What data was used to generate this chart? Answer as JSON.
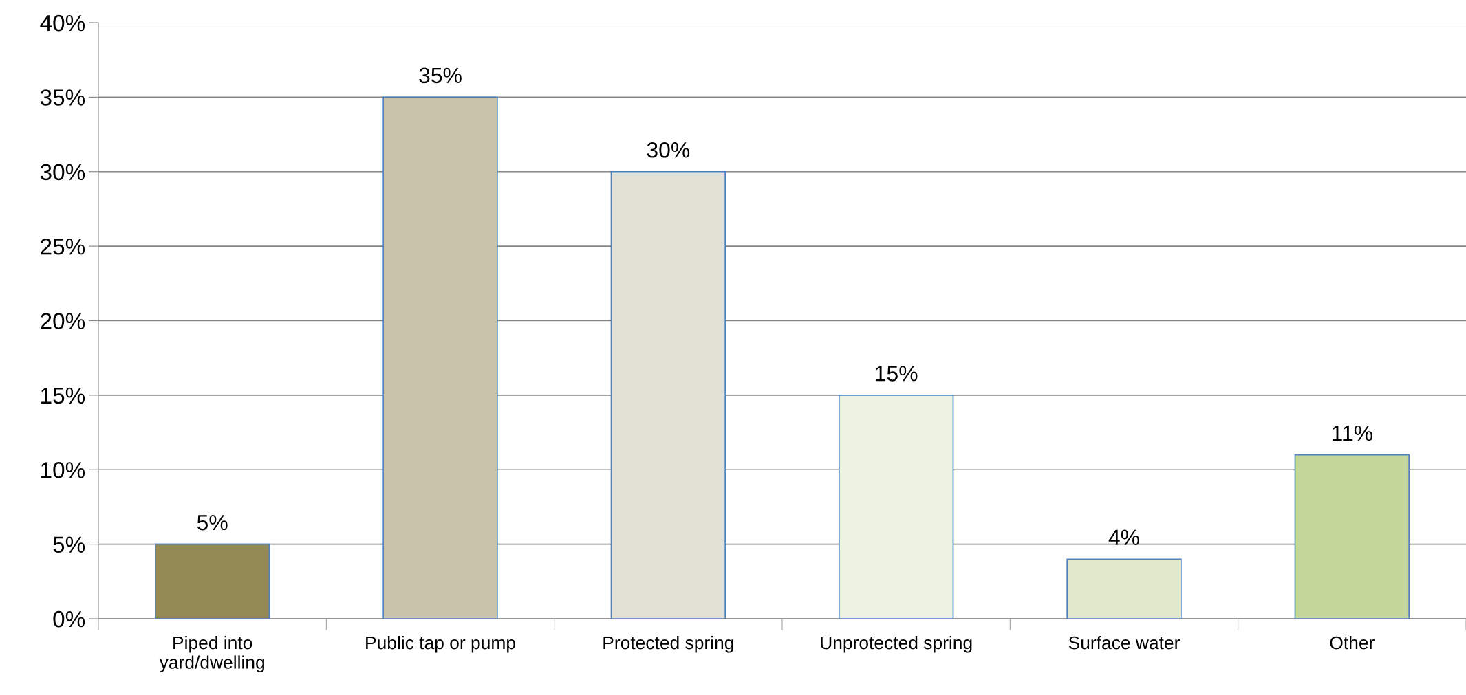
{
  "chart_data": {
    "type": "bar",
    "categories": [
      "Piped into\nyard/dwelling",
      "Public tap or pump",
      "Protected spring",
      "Unprotected spring",
      "Surface water",
      "Other"
    ],
    "values": [
      5,
      35,
      30,
      15,
      4,
      11
    ],
    "colors": [
      "#948a54",
      "#c8c3a9",
      "#e3e1d5",
      "#eff3e4",
      "#e2e8cc",
      "#c4d79b"
    ],
    "value_labels": [
      "5%",
      "35%",
      "30%",
      "15%",
      "4%",
      "11%"
    ],
    "ylim": [
      0,
      40
    ],
    "yticks": [
      {
        "value": 0,
        "label": "0%"
      },
      {
        "value": 5,
        "label": "5%"
      },
      {
        "value": 10,
        "label": "10%"
      },
      {
        "value": 15,
        "label": "15%"
      },
      {
        "value": 20,
        "label": "20%"
      },
      {
        "value": 25,
        "label": "25%"
      },
      {
        "value": 30,
        "label": "30%"
      },
      {
        "value": 35,
        "label": "35%"
      },
      {
        "value": 40,
        "label": "40%"
      }
    ],
    "grid": "y"
  }
}
